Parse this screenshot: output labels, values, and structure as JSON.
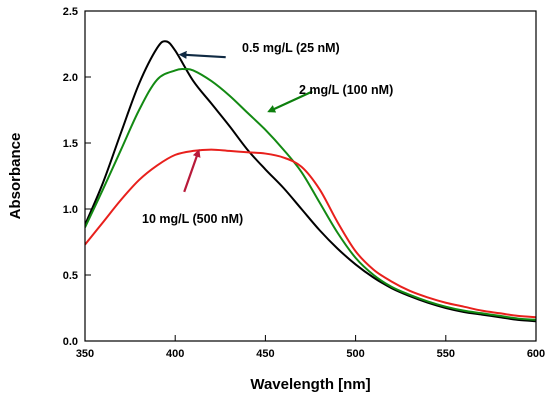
{
  "chart_data": {
    "type": "line",
    "title": "",
    "xlabel": "Wavelength [nm]",
    "ylabel": "Absorbance",
    "xlim": [
      350,
      600
    ],
    "ylim": [
      0.0,
      2.5
    ],
    "xticks": [
      350,
      400,
      450,
      500,
      550,
      600
    ],
    "yticks": [
      0.0,
      0.5,
      1.0,
      1.5,
      2.0,
      2.5
    ],
    "xtick_labels": [
      "350",
      "400",
      "450",
      "500",
      "550",
      "600"
    ],
    "ytick_labels": [
      "0.0",
      "0.5",
      "1.0",
      "1.5",
      "2.0",
      "2.5"
    ],
    "grid": false,
    "legend": "none",
    "series": [
      {
        "color": "#000000",
        "points": [
          [
            350,
            0.88
          ],
          [
            360,
            1.2
          ],
          [
            370,
            1.58
          ],
          [
            380,
            1.95
          ],
          [
            390,
            2.22
          ],
          [
            395,
            2.27
          ],
          [
            400,
            2.2
          ],
          [
            410,
            1.97
          ],
          [
            420,
            1.8
          ],
          [
            430,
            1.63
          ],
          [
            440,
            1.45
          ],
          [
            450,
            1.3
          ],
          [
            460,
            1.16
          ],
          [
            470,
            1.0
          ],
          [
            480,
            0.84
          ],
          [
            490,
            0.7
          ],
          [
            500,
            0.58
          ],
          [
            510,
            0.48
          ],
          [
            520,
            0.4
          ],
          [
            530,
            0.34
          ],
          [
            540,
            0.29
          ],
          [
            550,
            0.25
          ],
          [
            560,
            0.22
          ],
          [
            570,
            0.2
          ],
          [
            580,
            0.18
          ],
          [
            590,
            0.16
          ],
          [
            600,
            0.15
          ]
        ]
      },
      {
        "color": "#138a13",
        "points": [
          [
            350,
            0.86
          ],
          [
            360,
            1.15
          ],
          [
            370,
            1.45
          ],
          [
            380,
            1.75
          ],
          [
            390,
            1.98
          ],
          [
            400,
            2.05
          ],
          [
            405,
            2.06
          ],
          [
            410,
            2.05
          ],
          [
            420,
            1.97
          ],
          [
            430,
            1.86
          ],
          [
            440,
            1.73
          ],
          [
            450,
            1.6
          ],
          [
            460,
            1.45
          ],
          [
            470,
            1.28
          ],
          [
            480,
            1.05
          ],
          [
            490,
            0.82
          ],
          [
            500,
            0.63
          ],
          [
            510,
            0.5
          ],
          [
            520,
            0.41
          ],
          [
            530,
            0.35
          ],
          [
            540,
            0.3
          ],
          [
            550,
            0.26
          ],
          [
            560,
            0.23
          ],
          [
            570,
            0.21
          ],
          [
            580,
            0.19
          ],
          [
            590,
            0.17
          ],
          [
            600,
            0.16
          ]
        ]
      },
      {
        "color": "#e8201c",
        "points": [
          [
            350,
            0.73
          ],
          [
            360,
            0.9
          ],
          [
            370,
            1.07
          ],
          [
            380,
            1.22
          ],
          [
            390,
            1.33
          ],
          [
            400,
            1.41
          ],
          [
            410,
            1.44
          ],
          [
            420,
            1.45
          ],
          [
            430,
            1.44
          ],
          [
            440,
            1.43
          ],
          [
            450,
            1.42
          ],
          [
            460,
            1.39
          ],
          [
            470,
            1.32
          ],
          [
            480,
            1.15
          ],
          [
            490,
            0.9
          ],
          [
            500,
            0.68
          ],
          [
            510,
            0.54
          ],
          [
            520,
            0.45
          ],
          [
            530,
            0.38
          ],
          [
            540,
            0.33
          ],
          [
            550,
            0.29
          ],
          [
            560,
            0.26
          ],
          [
            570,
            0.23
          ],
          [
            580,
            0.21
          ],
          [
            590,
            0.19
          ],
          [
            600,
            0.18
          ]
        ]
      }
    ],
    "annotations": [
      {
        "text": "0.5 mg/L (25 nM)",
        "arrow_from": [
          428,
          2.15
        ],
        "arrow_to": [
          403,
          2.17
        ],
        "arrow_color": "#102a43"
      },
      {
        "text": "2 mg/L (100 nM)",
        "arrow_from": [
          476,
          1.89
        ],
        "arrow_to": [
          452,
          1.74
        ],
        "arrow_color": "#0d7f0d"
      },
      {
        "text": "10 mg/L (500 nM)",
        "arrow_from": [
          405,
          1.13
        ],
        "arrow_to": [
          413,
          1.44
        ],
        "arrow_color": "#b81a3a"
      }
    ]
  }
}
